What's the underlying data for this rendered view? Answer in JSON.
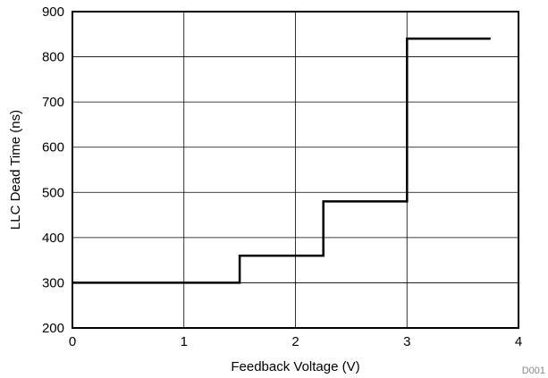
{
  "chart_data": {
    "type": "line",
    "xlabel": "Feedback Voltage (V)",
    "ylabel": "LLC Dead Time (ns)",
    "xlim": [
      0,
      4
    ],
    "ylim": [
      200,
      900
    ],
    "x_ticks": [
      "0",
      "1",
      "2",
      "3",
      "4"
    ],
    "y_ticks": [
      "200",
      "300",
      "400",
      "500",
      "600",
      "700",
      "800",
      "900"
    ],
    "grid": true,
    "step": true,
    "series": [
      {
        "x": [
          0,
          1.5,
          1.5,
          2.25,
          2.25,
          3.0,
          3.0,
          3.75
        ],
        "y": [
          300,
          300,
          360,
          360,
          480,
          480,
          840,
          840
        ]
      }
    ],
    "corner_label": "D001"
  }
}
